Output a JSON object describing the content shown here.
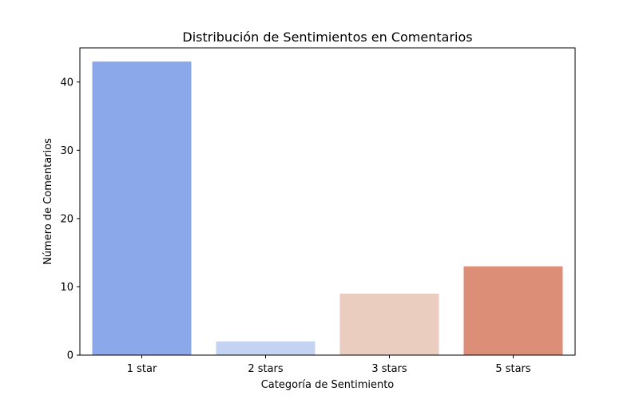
{
  "chart_data": {
    "type": "bar",
    "title": "Distribución de Sentimientos en Comentarios",
    "xlabel": "Categoría de Sentimiento",
    "ylabel": "Número de Comentarios",
    "categories": [
      "1 star",
      "2 stars",
      "3 stars",
      "5 stars"
    ],
    "values": [
      43,
      2,
      9,
      13
    ],
    "colors": [
      "#8aa8ea",
      "#c5d3f2",
      "#ebcdbf",
      "#dc8e77"
    ],
    "ylim": [
      0,
      45
    ],
    "yticks": [
      0,
      10,
      20,
      30,
      40
    ],
    "grid": false,
    "legend": "none"
  }
}
